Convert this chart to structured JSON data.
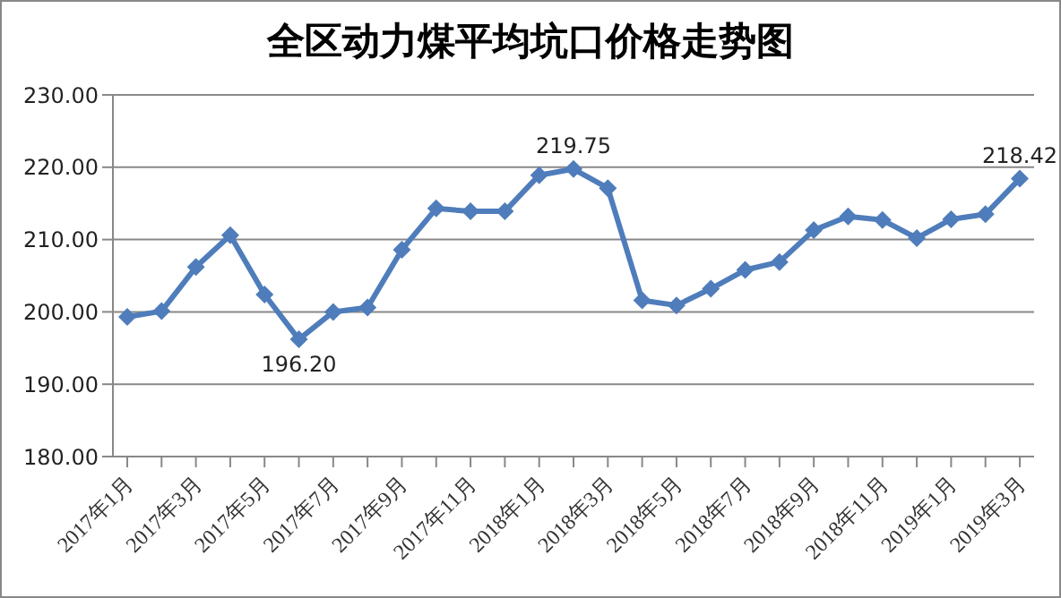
{
  "chart_data": {
    "type": "line",
    "title": "全区动力煤平均坑口价格走势图",
    "categories": [
      "2017年1月",
      null,
      "2017年3月",
      null,
      "2017年5月",
      null,
      "2017年7月",
      null,
      "2017年9月",
      null,
      "2017年11月",
      null,
      "2018年1月",
      null,
      "2018年3月",
      null,
      "2018年5月",
      null,
      "2018年7月",
      null,
      "2018年9月",
      null,
      "2018年11月",
      null,
      "2019年1月",
      null,
      "2019年3月"
    ],
    "series": [
      {
        "color": "#4f7dbb",
        "values": [
          199.3,
          200.1,
          206.2,
          210.6,
          202.4,
          196.2,
          200.0,
          200.6,
          208.6,
          214.3,
          213.9,
          213.9,
          218.9,
          219.75,
          217.1,
          201.6,
          200.9,
          203.2,
          205.8,
          206.9,
          211.3,
          213.2,
          212.7,
          210.2,
          212.8,
          213.5,
          218.42
        ],
        "value_labels": [
          null,
          null,
          null,
          null,
          null,
          "196.20",
          null,
          null,
          null,
          null,
          null,
          null,
          null,
          "219.75",
          null,
          null,
          null,
          null,
          null,
          null,
          null,
          null,
          null,
          null,
          null,
          null,
          "218.42"
        ]
      }
    ],
    "ylim": [
      180,
      230
    ],
    "yticks": [
      {
        "value": 180,
        "label": "180.00"
      },
      {
        "value": 190,
        "label": "190.00"
      },
      {
        "value": 200,
        "label": "200.00"
      },
      {
        "value": 210,
        "label": "210.00"
      },
      {
        "value": 220,
        "label": "220.00"
      },
      {
        "value": 230,
        "label": "230.00"
      }
    ],
    "grid": "y",
    "marker": "diamond",
    "line_style": "solid",
    "legend": false
  }
}
